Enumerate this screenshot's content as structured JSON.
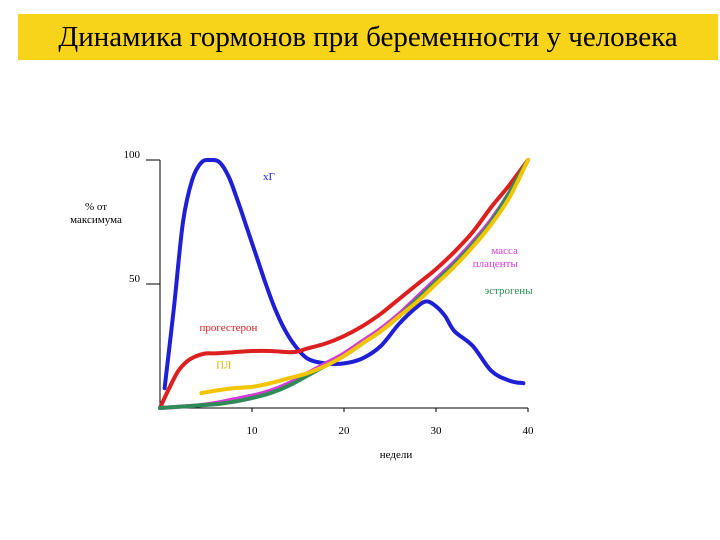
{
  "header": {
    "title": "Динамика гормонов при беременности у человека"
  },
  "chart_data": {
    "type": "line",
    "title": "Динамика гормонов при беременности у человека",
    "xlabel": "недели",
    "ylabel": "% от максимума",
    "ylabel_lines": [
      "% от",
      "максимума"
    ],
    "xlim": [
      0,
      40
    ],
    "ylim": [
      0,
      100
    ],
    "x_ticks": [
      10,
      20,
      30,
      40
    ],
    "y_ticks": [
      50,
      100
    ],
    "grid": false,
    "series": [
      {
        "name": "хГ",
        "color": "#1f1fd6",
        "x": [
          0.5,
          1.5,
          2.5,
          3.5,
          4.5,
          5.5,
          6.5,
          7.5,
          8.5,
          9.5,
          10.5,
          11.5,
          12.5,
          13.5,
          14.5,
          16,
          18,
          20,
          22,
          24,
          26,
          28,
          29,
          30,
          31,
          32,
          34,
          36,
          38,
          39.5
        ],
        "y": [
          8,
          40,
          75,
          92,
          99,
          100,
          99,
          93,
          83,
          72,
          61,
          50,
          40,
          32,
          26,
          20,
          18,
          18,
          20,
          25,
          34,
          41,
          43,
          41,
          37,
          31,
          25,
          15,
          11,
          10
        ]
      },
      {
        "name": "прогестерон",
        "color": "#dd1f1f",
        "x": [
          0,
          1,
          2,
          3,
          4,
          5,
          6,
          8,
          10,
          12,
          14,
          15,
          16,
          18,
          20,
          22,
          24,
          26,
          28,
          30,
          32,
          34,
          36,
          38,
          40
        ],
        "y": [
          0,
          8,
          15,
          19,
          21,
          22,
          22,
          22.5,
          23,
          23,
          22.5,
          22.8,
          24,
          26,
          29,
          33,
          38,
          44,
          50,
          56,
          63,
          71,
          81,
          90,
          100
        ]
      },
      {
        "name": "эстрогены",
        "color": "#2e8b57",
        "x": [
          0,
          2,
          4,
          6,
          8,
          10,
          12,
          14,
          16,
          18,
          20,
          22,
          24,
          26,
          28,
          30,
          32,
          34,
          36,
          38,
          40
        ],
        "y": [
          0,
          0.5,
          1,
          1.5,
          2.5,
          4,
          6,
          9,
          13,
          17,
          21,
          26,
          31,
          37,
          44,
          51,
          58,
          66,
          75,
          87,
          100
        ]
      },
      {
        "name": "масса плаценты",
        "color": "#d63ad6",
        "x": [
          0,
          2,
          4,
          6,
          8,
          10,
          12,
          14,
          16,
          18,
          20,
          22,
          24,
          26,
          28,
          30,
          32,
          34,
          36,
          38,
          40
        ],
        "y": [
          0,
          0.5,
          1,
          2,
          3.5,
          5,
          7,
          10,
          14,
          18,
          22,
          27,
          32,
          38,
          45,
          52,
          59,
          67,
          76,
          87,
          100
        ]
      },
      {
        "name": "ПЛ",
        "color": "#f2c500",
        "x": [
          4.5,
          6,
          8,
          10,
          12,
          14,
          16,
          18,
          20,
          22,
          24,
          26,
          28,
          30,
          32,
          34,
          36,
          38,
          40
        ],
        "y": [
          6,
          7,
          8,
          8.5,
          10,
          12,
          14,
          17,
          21,
          26,
          31,
          37,
          43,
          50,
          57,
          65,
          74,
          85,
          100
        ]
      }
    ],
    "annotations": [
      {
        "series": "хГ",
        "lines": [
          "хГ"
        ],
        "x": 11.2,
        "y": 92,
        "color": "#1f1fd6",
        "size": 14,
        "anchor": "start"
      },
      {
        "series": "масса плаценты",
        "lines": [
          "масса",
          "плаценты"
        ],
        "x": 38.9,
        "y": 62,
        "color": "#d63ad6",
        "size": 11,
        "anchor": "end"
      },
      {
        "series": "эстрогены",
        "lines": [
          "эстрогены"
        ],
        "x": 40.5,
        "y": 46,
        "color": "#2e8b57",
        "size": 11,
        "anchor": "end"
      },
      {
        "series": "прогестерон",
        "lines": [
          "прогестерон"
        ],
        "x": 4.3,
        "y": 31,
        "color": "#dd1f1f",
        "size": 11,
        "anchor": "start"
      },
      {
        "series": "ПЛ",
        "lines": [
          "ПЛ"
        ],
        "x": 6.1,
        "y": 16,
        "color": "#d6b400",
        "size": 11,
        "anchor": "start"
      }
    ]
  }
}
